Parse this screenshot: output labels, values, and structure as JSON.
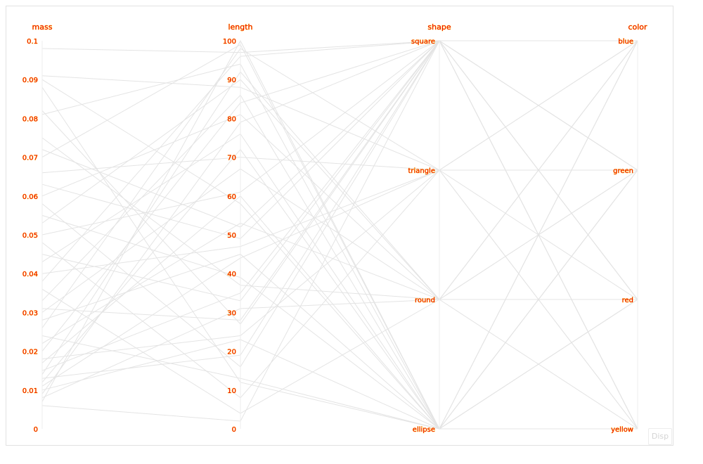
{
  "chart_data": {
    "type": "parallel-coordinates",
    "axes": [
      {
        "name": "mass",
        "kind": "numeric",
        "min": 0,
        "max": 0.1,
        "ticks": [
          "0",
          "0.01",
          "0.02",
          "0.03",
          "0.04",
          "0.05",
          "0.06",
          "0.07",
          "0.08",
          "0.09",
          "0.1"
        ]
      },
      {
        "name": "length",
        "kind": "numeric",
        "min": 0,
        "max": 100,
        "ticks": [
          "0",
          "10",
          "20",
          "30",
          "40",
          "50",
          "60",
          "70",
          "80",
          "90",
          "100"
        ]
      },
      {
        "name": "shape",
        "kind": "categorical",
        "categories": [
          "square",
          "triangle",
          "round",
          "ellipse"
        ]
      },
      {
        "name": "color",
        "kind": "categorical",
        "categories": [
          "blue",
          "green",
          "red",
          "yellow"
        ]
      }
    ],
    "records": [
      [
        0.098,
        97,
        "square",
        "blue"
      ],
      [
        0.091,
        88,
        "triangle",
        "yellow"
      ],
      [
        0.09,
        58,
        "ellipse",
        "green"
      ],
      [
        0.088,
        12,
        "ellipse",
        "blue"
      ],
      [
        0.082,
        27,
        "square",
        "red"
      ],
      [
        0.081,
        94,
        "ellipse",
        "yellow"
      ],
      [
        0.075,
        37,
        "round",
        "blue"
      ],
      [
        0.072,
        52,
        "square",
        "green"
      ],
      [
        0.07,
        99,
        "ellipse",
        "red"
      ],
      [
        0.066,
        70,
        "triangle",
        "green"
      ],
      [
        0.063,
        49,
        "square",
        "yellow"
      ],
      [
        0.06,
        81,
        "round",
        "red"
      ],
      [
        0.058,
        16,
        "square",
        "blue"
      ],
      [
        0.055,
        39,
        "ellipse",
        "green"
      ],
      [
        0.053,
        90,
        "round",
        "yellow"
      ],
      [
        0.05,
        61,
        "square",
        "yellow"
      ],
      [
        0.048,
        8,
        "triangle",
        "blue"
      ],
      [
        0.045,
        33,
        "square",
        "green"
      ],
      [
        0.043,
        76,
        "ellipse",
        "blue"
      ],
      [
        0.04,
        47,
        "triangle",
        "red"
      ],
      [
        0.038,
        96,
        "square",
        "red"
      ],
      [
        0.036,
        4,
        "round",
        "green"
      ],
      [
        0.033,
        86,
        "ellipse",
        "green"
      ],
      [
        0.031,
        28,
        "square",
        "yellow"
      ],
      [
        0.03,
        67,
        "round",
        "blue"
      ],
      [
        0.028,
        45,
        "ellipse",
        "yellow"
      ],
      [
        0.026,
        98,
        "triangle",
        "blue"
      ],
      [
        0.024,
        13,
        "ellipse",
        "red"
      ],
      [
        0.022,
        53,
        "round",
        "green"
      ],
      [
        0.02,
        84,
        "square",
        "blue"
      ],
      [
        0.018,
        24,
        "triangle",
        "yellow"
      ],
      [
        0.017,
        60,
        "ellipse",
        "blue"
      ],
      [
        0.015,
        35,
        "square",
        "red"
      ],
      [
        0.014,
        92,
        "round",
        "red"
      ],
      [
        0.013,
        19,
        "square",
        "green"
      ],
      [
        0.012,
        72,
        "ellipse",
        "yellow"
      ],
      [
        0.011,
        44,
        "triangle",
        "green"
      ],
      [
        0.01,
        23,
        "ellipse",
        "red"
      ],
      [
        0.009,
        79,
        "square",
        "yellow"
      ],
      [
        0.008,
        31,
        "round",
        "blue"
      ],
      [
        0.007,
        100,
        "ellipse",
        "green"
      ],
      [
        0.006,
        2,
        "square",
        "red"
      ]
    ],
    "colors": {
      "line": "#e4e4e4",
      "axis": "#eeeeee",
      "label": "#ee0000",
      "label_halo": "#ffd000"
    }
  },
  "controls": {
    "disp_label": "Disp"
  }
}
